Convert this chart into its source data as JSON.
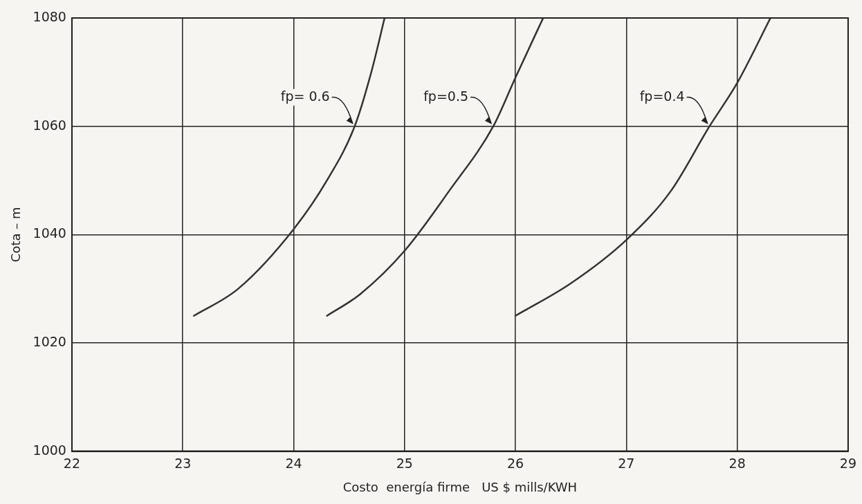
{
  "chart_data": {
    "type": "line",
    "xlabel": "Costo  energía firme   US $ mills/KWH",
    "ylabel": "Cota – m",
    "xlim": [
      22,
      29
    ],
    "xticks": [
      22,
      23,
      24,
      25,
      26,
      27,
      28,
      29
    ],
    "ylim": [
      1000,
      1080
    ],
    "yticks": [
      1000,
      1020,
      1040,
      1060,
      1080
    ],
    "grid": true,
    "legend": false,
    "marker": "none",
    "line_style": "solid",
    "series": [
      {
        "color": "#333333",
        "x": [
          23.1,
          23.5,
          24.0,
          24.3,
          24.55,
          24.7,
          24.82
        ],
        "values": [
          1025,
          1030,
          1041,
          1050,
          1060,
          1070,
          1080
        ]
      },
      {
        "color": "#333333",
        "x": [
          24.3,
          24.6,
          25.0,
          25.4,
          25.8,
          26.0,
          26.25
        ],
        "values": [
          1025,
          1029,
          1037,
          1048,
          1060,
          1069,
          1080
        ]
      },
      {
        "color": "#333333",
        "x": [
          26.0,
          26.5,
          27.0,
          27.4,
          27.75,
          28.0,
          28.3
        ],
        "values": [
          1025,
          1031,
          1039,
          1048,
          1060,
          1068,
          1080
        ]
      }
    ],
    "annotations": [
      {
        "text": "fp= 0.6",
        "x": 24.55,
        "y": 1060
      },
      {
        "text": "fp=0.5",
        "x": 25.8,
        "y": 1060
      },
      {
        "text": "fp=0.4",
        "x": 27.75,
        "y": 1060
      }
    ]
  }
}
